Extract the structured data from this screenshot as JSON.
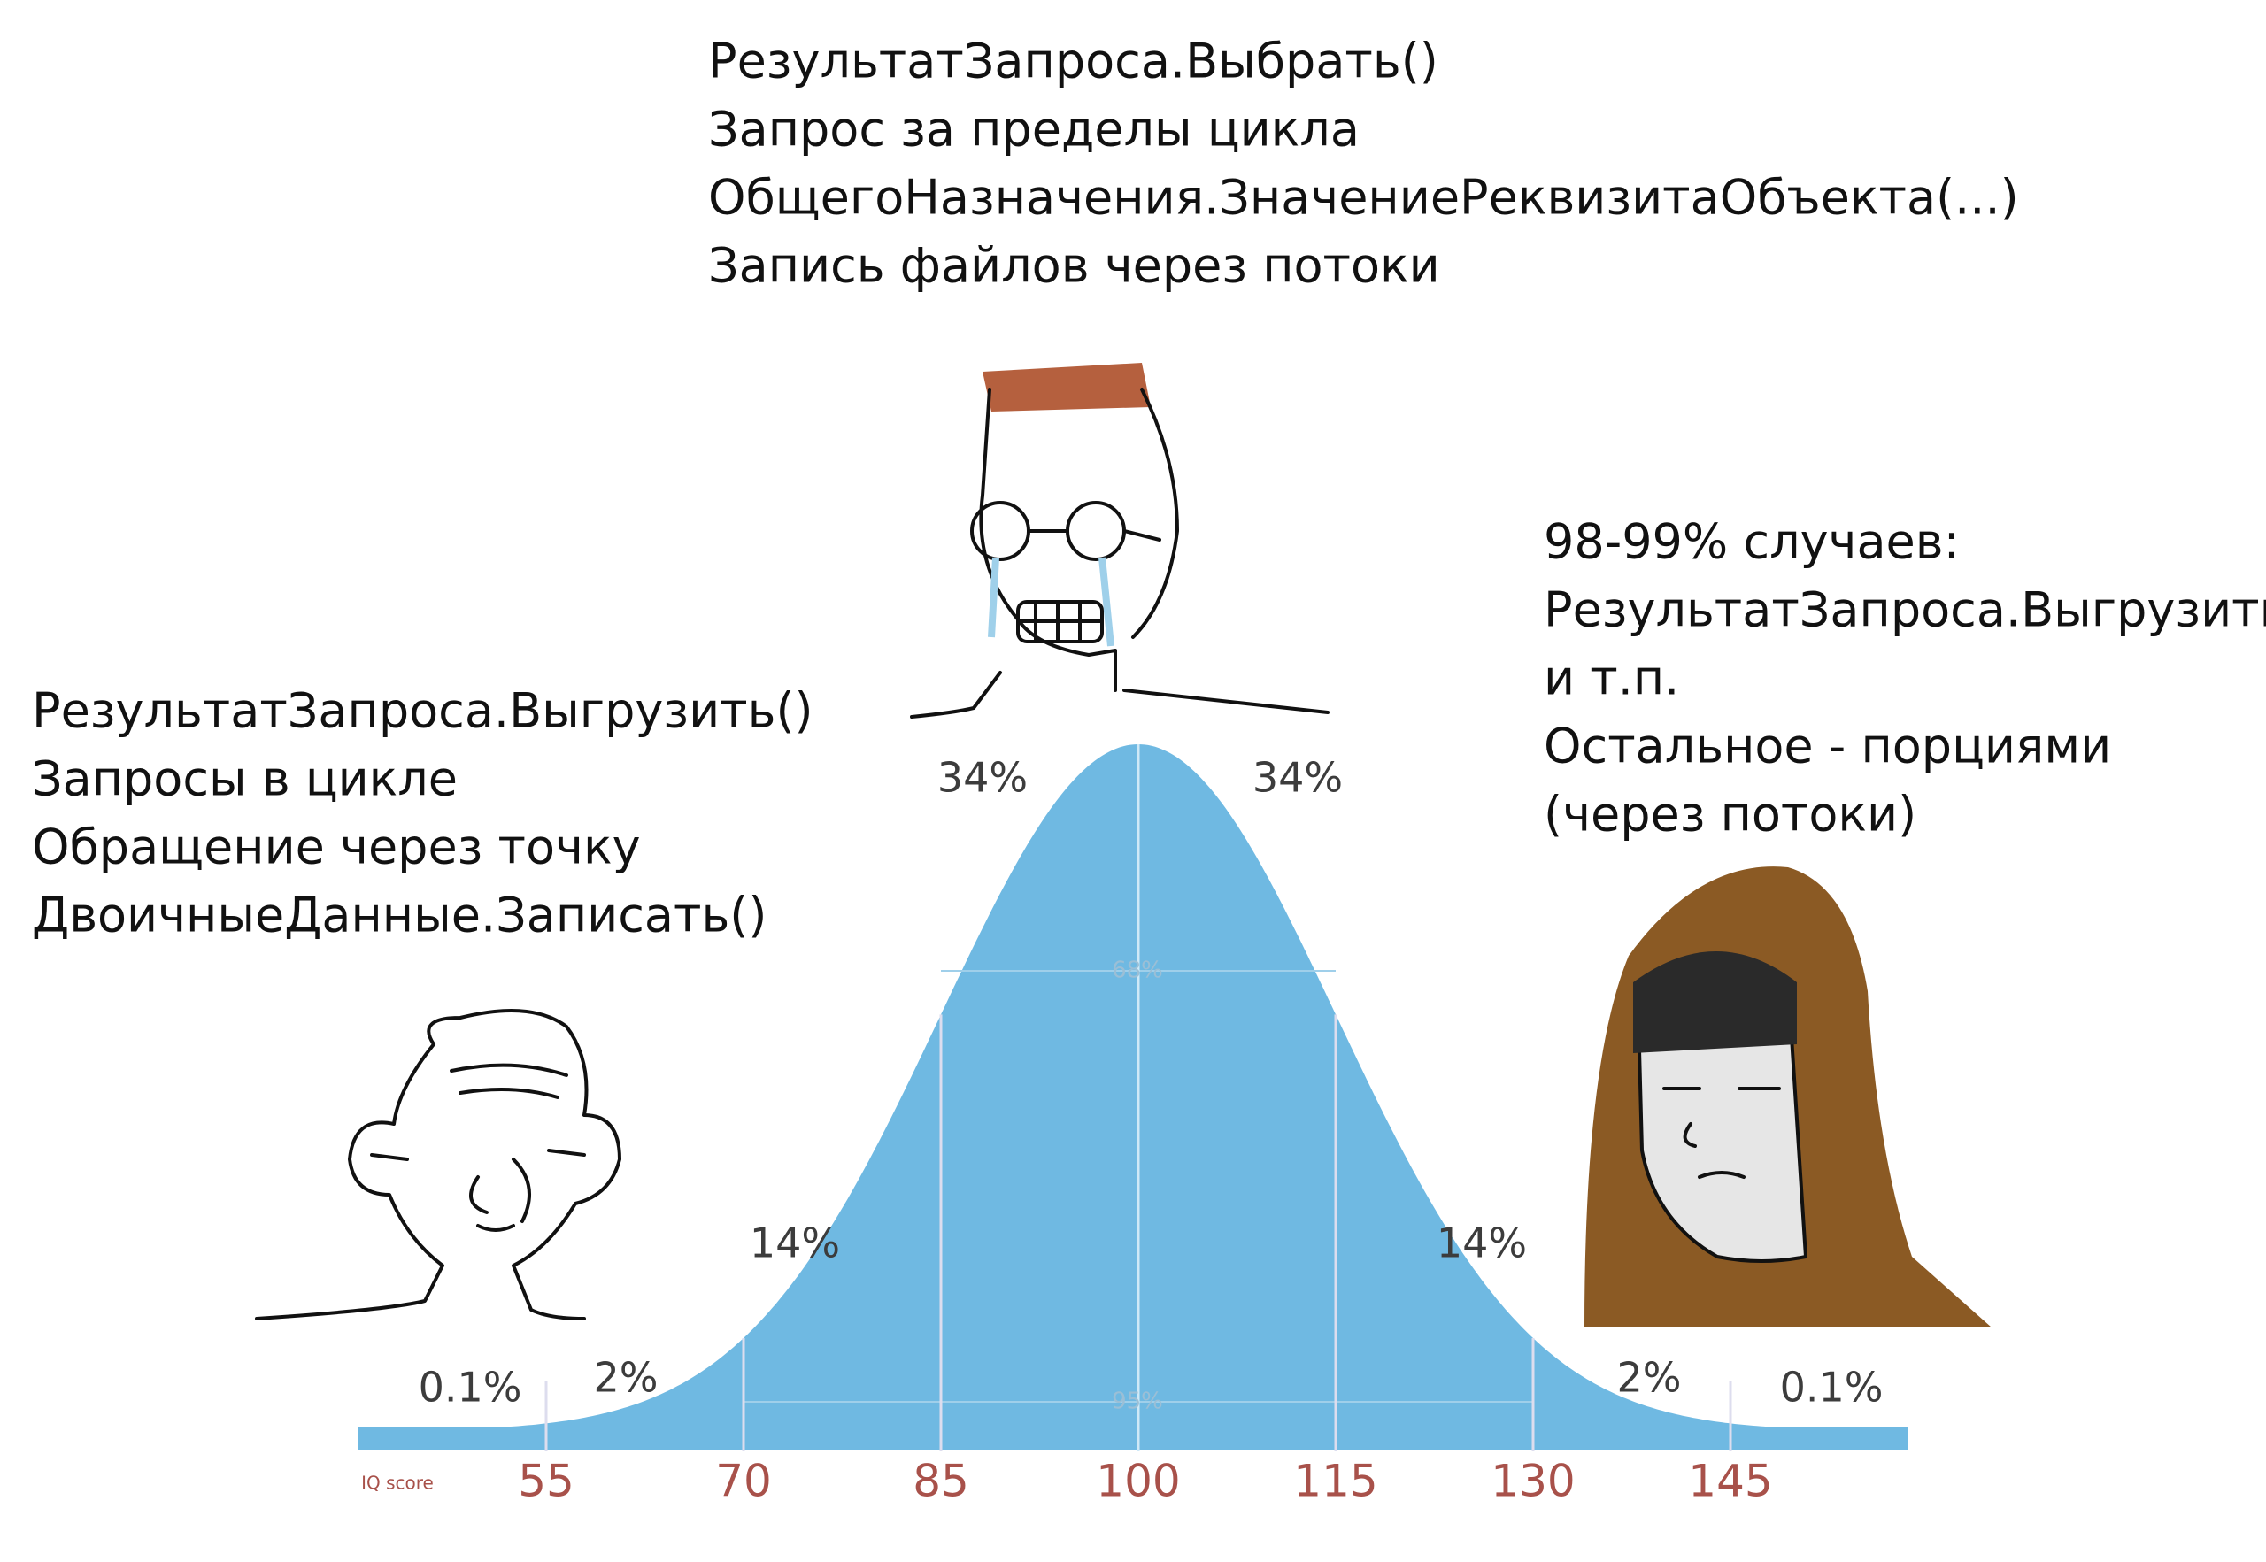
{
  "captions": {
    "middle": [
      "РезультатЗапроса.Выбрать()",
      "Запрос за пределы цикла",
      "ОбщегоНазначения.ЗначениеРеквизитаОбъекта(...)",
      "Запись файлов через потоки"
    ],
    "left": [
      "РезультатЗапроса.Выгрузить()",
      "Запросы в цикле",
      "Обращение через точку",
      "ДвоичныеДанные.Записать()"
    ],
    "right": [
      "98-99% случаев:",
      "РезультатЗапроса.Выгрузить()",
      "и т.п.",
      "Остальное - порциями",
      "(через потоки)"
    ]
  },
  "curve": {
    "bands": [
      "0.1%",
      "2%",
      "14%",
      "34%",
      "34%",
      "14%",
      "2%",
      "0.1%"
    ],
    "inner": [
      "68%",
      "95%"
    ]
  },
  "axis": {
    "label": "IQ score",
    "ticks": [
      55,
      70,
      85,
      100,
      115,
      130,
      145
    ]
  }
}
